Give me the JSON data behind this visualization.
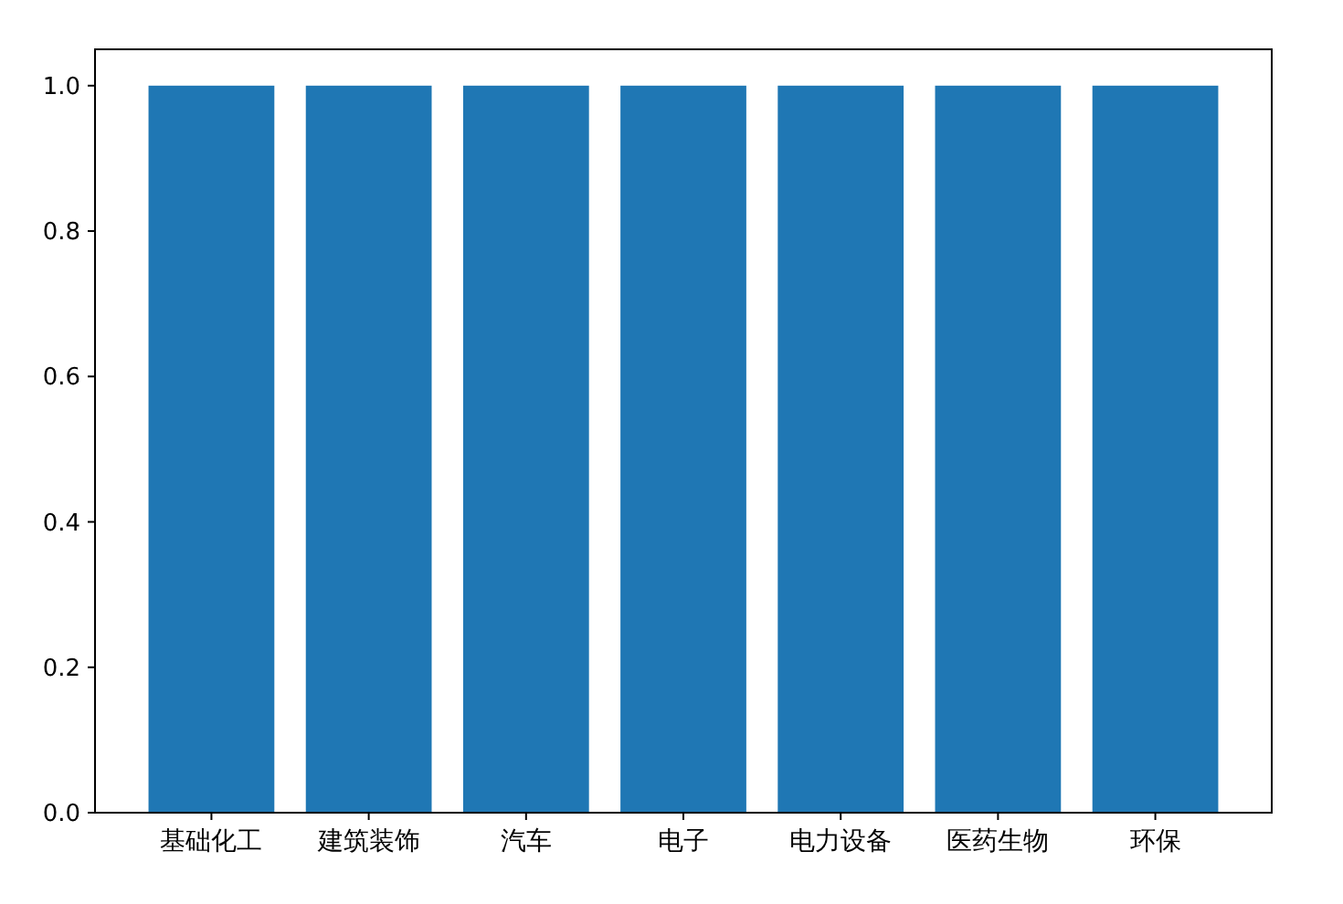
{
  "chart_data": {
    "type": "bar",
    "categories": [
      "基础化工",
      "建筑装饰",
      "汽车",
      "电子",
      "电力设备",
      "医药生物",
      "环保"
    ],
    "values": [
      1.0,
      1.0,
      1.0,
      1.0,
      1.0,
      1.0,
      1.0
    ],
    "color": "#1f77b4",
    "ylim": [
      0,
      1.05
    ],
    "yticks": [
      {
        "value": 0,
        "label": "0.0"
      },
      {
        "value": 0.2,
        "label": "0.2"
      },
      {
        "value": 0.4,
        "label": "0.4"
      },
      {
        "value": 0.6,
        "label": "0.6"
      },
      {
        "value": 0.8,
        "label": "0.8"
      },
      {
        "value": 1.0,
        "label": "1.0"
      }
    ]
  }
}
